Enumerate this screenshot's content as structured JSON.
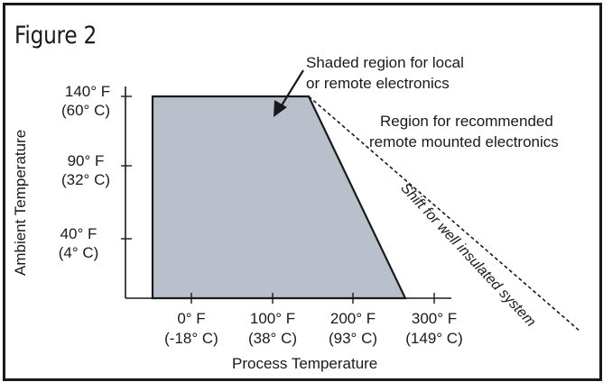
{
  "figure_label": "Figure 2",
  "annotations": {
    "shaded_region": [
      "Shaded region for local",
      "or remote electronics"
    ],
    "recommended_region": [
      "Region for recommended",
      "remote mounted electronics"
    ],
    "diagonal": "Shift for well insulated system"
  },
  "y_axis": {
    "title": "Ambient Temperature",
    "ticks": [
      {
        "f": "140° F",
        "c": "(60° C)"
      },
      {
        "f": "90° F",
        "c": "(32° C)"
      },
      {
        "f": "40° F",
        "c": "(4° C)"
      }
    ]
  },
  "x_axis": {
    "title": "Process Temperature",
    "ticks": [
      {
        "f": "0° F",
        "c": "(-18° C)"
      },
      {
        "f": "100° F",
        "c": "(38° C)"
      },
      {
        "f": "200° F",
        "c": "(93° C)"
      },
      {
        "f": "300° F",
        "c": "(149° C)"
      }
    ]
  },
  "colors": {
    "shaded_fill": "#b9c0cb",
    "line": "#1a1a1a",
    "frame": "#1a1a1a"
  }
}
